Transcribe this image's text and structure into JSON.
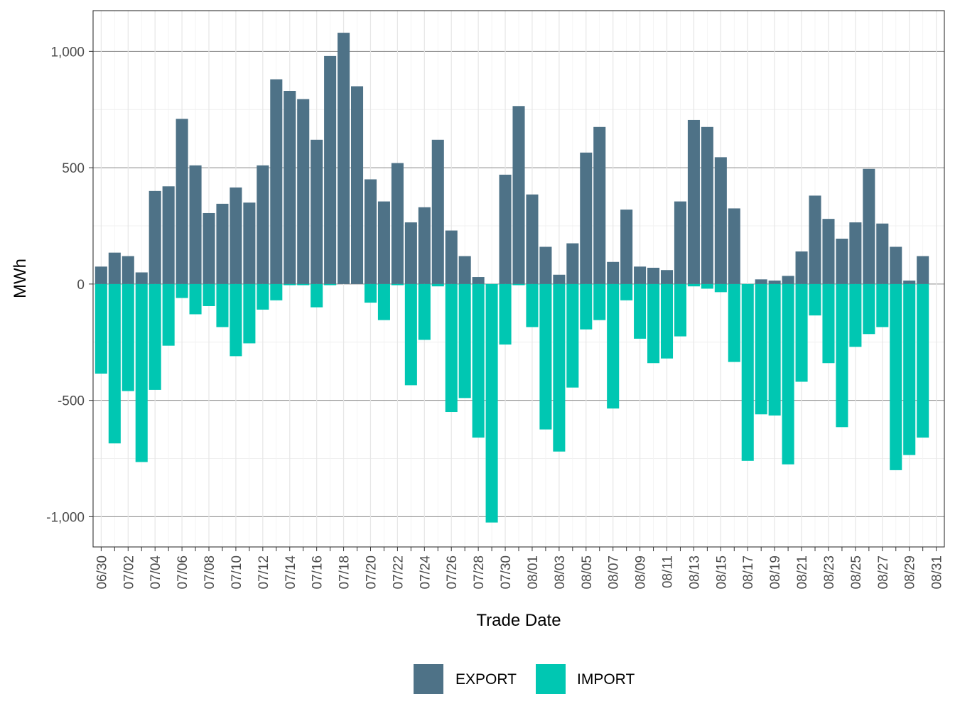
{
  "chart_data": {
    "type": "bar",
    "stacked": true,
    "title": "",
    "xlabel": "Trade Date",
    "ylabel": "MWh",
    "ylim": [
      -1130,
      1175
    ],
    "y_ticks": [
      -1000,
      -500,
      0,
      500,
      1000
    ],
    "y_tick_labels": [
      "-1,000",
      "-500",
      "0",
      "500",
      "1,000"
    ],
    "grid": true,
    "legend_position": "bottom",
    "categories": [
      "06/30",
      "07/01",
      "07/02",
      "07/03",
      "07/04",
      "07/05",
      "07/06",
      "07/07",
      "07/08",
      "07/09",
      "07/10",
      "07/11",
      "07/12",
      "07/13",
      "07/14",
      "07/15",
      "07/16",
      "07/17",
      "07/18",
      "07/19",
      "07/20",
      "07/21",
      "07/22",
      "07/23",
      "07/24",
      "07/25",
      "07/26",
      "07/27",
      "07/28",
      "07/29",
      "07/30",
      "07/31",
      "08/01",
      "08/02",
      "08/03",
      "08/04",
      "08/05",
      "08/06",
      "08/07",
      "08/08",
      "08/09",
      "08/10",
      "08/11",
      "08/12",
      "08/13",
      "08/14",
      "08/15",
      "08/16",
      "08/17",
      "08/18",
      "08/19",
      "08/20",
      "08/21",
      "08/22",
      "08/23",
      "08/24",
      "08/25",
      "08/26",
      "08/27",
      "08/28",
      "08/29",
      "08/30",
      "08/31"
    ],
    "x_tick_labels": [
      "06/30",
      "07/02",
      "07/04",
      "07/06",
      "07/08",
      "07/10",
      "07/12",
      "07/14",
      "07/16",
      "07/18",
      "07/20",
      "07/22",
      "07/24",
      "07/26",
      "07/28",
      "07/30",
      "08/01",
      "08/03",
      "08/05",
      "08/07",
      "08/09",
      "08/11",
      "08/13",
      "08/15",
      "08/17",
      "08/19",
      "08/21",
      "08/23",
      "08/25",
      "08/27",
      "08/29",
      "08/31"
    ],
    "series": [
      {
        "name": "EXPORT",
        "color": "#4e7287",
        "values": [
          75,
          135,
          120,
          50,
          400,
          420,
          710,
          510,
          305,
          345,
          415,
          350,
          510,
          880,
          830,
          795,
          620,
          980,
          1080,
          850,
          450,
          355,
          520,
          265,
          330,
          620,
          230,
          120,
          30,
          0,
          470,
          765,
          385,
          160,
          40,
          175,
          565,
          675,
          95,
          320,
          75,
          70,
          60,
          355,
          705,
          675,
          545,
          325,
          0,
          20,
          15,
          35,
          140,
          380,
          280,
          195,
          265,
          495,
          260,
          160,
          15,
          120,
          0
        ]
      },
      {
        "name": "IMPORT",
        "color": "#00c7b2",
        "values": [
          -385,
          -685,
          -460,
          -765,
          -455,
          -265,
          -60,
          -130,
          -95,
          -185,
          -310,
          -255,
          -110,
          -70,
          -5,
          -5,
          -100,
          -5,
          0,
          0,
          -80,
          -155,
          -5,
          -435,
          -240,
          -10,
          -550,
          -490,
          -660,
          -1025,
          -260,
          -5,
          -185,
          -625,
          -720,
          -445,
          -195,
          -155,
          -535,
          -70,
          -235,
          -340,
          -320,
          -225,
          -10,
          -20,
          -35,
          -335,
          -760,
          -560,
          -565,
          -775,
          -420,
          -135,
          -340,
          -615,
          -270,
          -215,
          -185,
          -800,
          -735,
          -660,
          0
        ]
      }
    ]
  }
}
